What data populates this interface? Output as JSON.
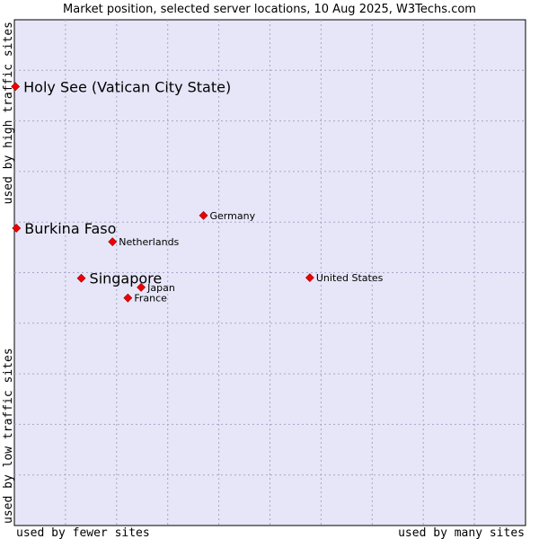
{
  "chart_data": {
    "type": "scatter",
    "title": "Market position, selected server locations, 10 Aug 2025, W3Techs.com",
    "xlabel_left": "used by fewer sites",
    "xlabel_right": "used by many sites",
    "ylabel_bottom": "used by low traffic sites",
    "ylabel_top": "used by high traffic sites",
    "xlim": [
      0,
      10
    ],
    "ylim": [
      0,
      10
    ],
    "grid": true,
    "background": "#e6e6f8",
    "point_color": "#ee0000",
    "points": [
      {
        "label": "Holy See (Vatican City State)",
        "x": 0.02,
        "y": 8.68,
        "highlight": true
      },
      {
        "label": "Burkina Faso",
        "x": 0.04,
        "y": 5.88,
        "highlight": true
      },
      {
        "label": "Singapore",
        "x": 1.31,
        "y": 4.89,
        "highlight": true
      },
      {
        "label": "Netherlands",
        "x": 1.92,
        "y": 5.61,
        "highlight": false
      },
      {
        "label": "Germany",
        "x": 3.7,
        "y": 6.13,
        "highlight": false
      },
      {
        "label": "Japan",
        "x": 2.48,
        "y": 4.71,
        "highlight": false
      },
      {
        "label": "France",
        "x": 2.22,
        "y": 4.5,
        "highlight": false
      },
      {
        "label": "United States",
        "x": 5.78,
        "y": 4.9,
        "highlight": false
      }
    ]
  }
}
